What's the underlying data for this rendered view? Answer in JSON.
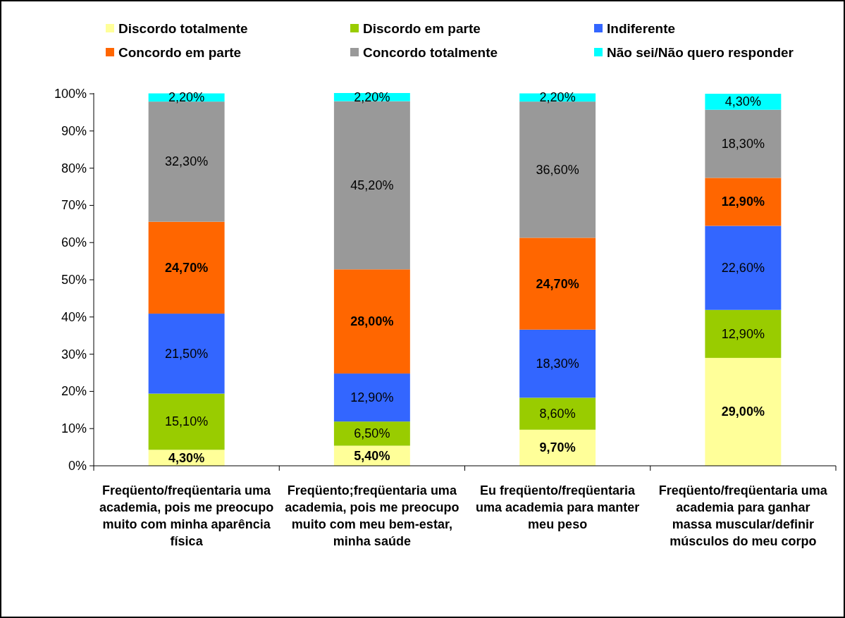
{
  "chart_data": {
    "type": "bar",
    "stacked": true,
    "legend": "top",
    "grid": false,
    "categories": [
      "Freqüento/freqüentaria uma academia, pois me preocupo muito com minha aparência física",
      "Freqüento;freqüentaria uma academia, pois me preocupo muito com meu bem-estar, minha saúde",
      "Eu freqüento/freqüentaria uma academia para manter meu peso",
      "Freqüento/freqüentaria uma academia para ganhar massa muscular/definir músculos do meu corpo"
    ],
    "ylim": [
      0,
      100.2
    ],
    "yticks": [
      {
        "value": 0,
        "label": "0%"
      },
      {
        "value": 10,
        "label": "10%"
      },
      {
        "value": 20,
        "label": "20%"
      },
      {
        "value": 30,
        "label": "30%"
      },
      {
        "value": 40,
        "label": "40%"
      },
      {
        "value": 50,
        "label": "50%"
      },
      {
        "value": 60,
        "label": "60%"
      },
      {
        "value": 70,
        "label": "70%"
      },
      {
        "value": 80,
        "label": "80%"
      },
      {
        "value": 90,
        "label": "90%"
      },
      {
        "value": 100,
        "label": "100%"
      }
    ],
    "series": [
      {
        "name": "Discordo totalmente",
        "color": "#ffff99",
        "values": [
          4.3,
          5.4,
          9.7,
          29.0
        ],
        "value_labels": [
          "4,30%",
          "5,40%",
          "9,70%",
          "29,00%"
        ]
      },
      {
        "name": "Discordo em parte",
        "color": "#99cc00",
        "values": [
          15.1,
          6.5,
          8.6,
          12.9
        ],
        "value_labels": [
          "15,10%",
          "6,50%",
          "8,60%",
          "12,90%"
        ]
      },
      {
        "name": "Indiferente",
        "color": "#3366ff",
        "values": [
          21.5,
          12.9,
          18.3,
          22.6
        ],
        "value_labels": [
          "21,50%",
          "12,90%",
          "18,30%",
          "22,60%"
        ]
      },
      {
        "name": "Concordo em parte",
        "color": "#ff6600",
        "values": [
          24.7,
          28.0,
          24.7,
          12.9
        ],
        "value_labels": [
          "24,70%",
          "28,00%",
          "24,70%",
          "12,90%"
        ]
      },
      {
        "name": "Concordo totalmente",
        "color": "#999999",
        "values": [
          32.3,
          45.2,
          36.6,
          18.3
        ],
        "value_labels": [
          "32,30%",
          "45,20%",
          "36,60%",
          "18,30%"
        ]
      },
      {
        "name": "Não sei/Não quero responder",
        "color": "#00ffff",
        "values": [
          2.2,
          2.2,
          2.2,
          4.3
        ],
        "value_labels": [
          "2,20%",
          "2,20%",
          "2,20%",
          "4,30%"
        ]
      }
    ]
  }
}
